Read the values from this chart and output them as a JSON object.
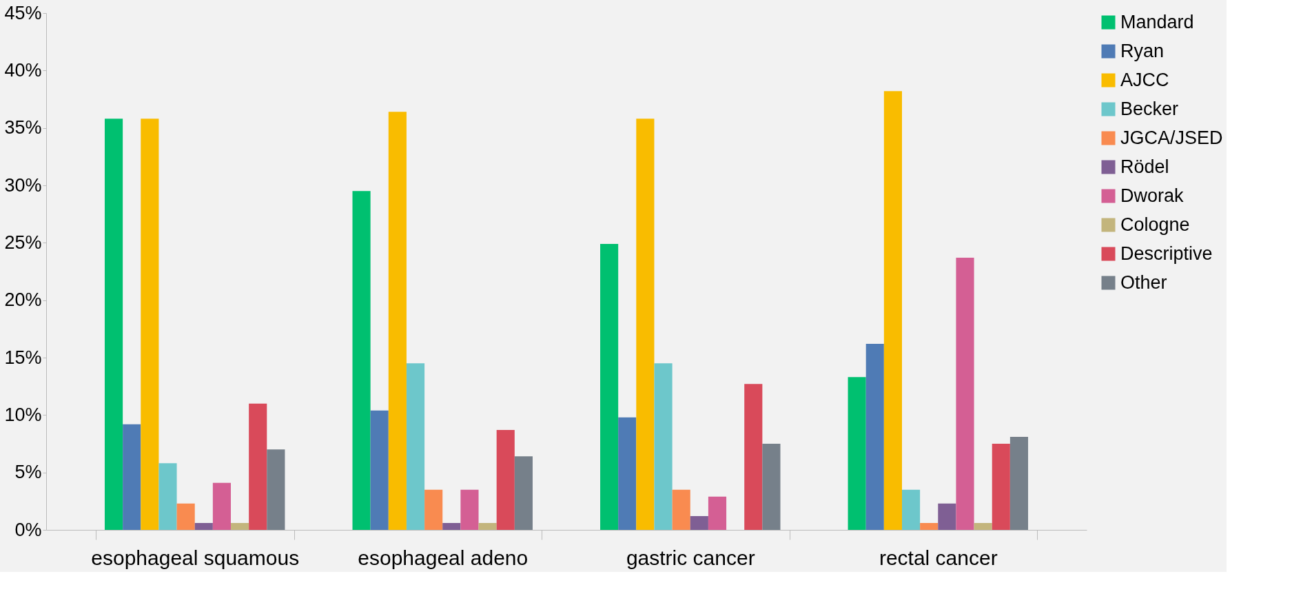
{
  "chart_data": {
    "type": "bar",
    "categories": [
      "esophageal squamous",
      "esophageal adeno",
      "gastric cancer",
      "rectal cancer"
    ],
    "series": [
      {
        "name": "Mandard",
        "color": "#00c070",
        "values": [
          35.8,
          29.5,
          24.9,
          13.3
        ]
      },
      {
        "name": "Ryan",
        "color": "#4f7bb5",
        "values": [
          9.2,
          10.4,
          9.8,
          16.2
        ]
      },
      {
        "name": "AJCC",
        "color": "#f9bc00",
        "values": [
          35.8,
          36.4,
          35.8,
          38.2
        ]
      },
      {
        "name": "Becker",
        "color": "#6dc7cb",
        "values": [
          5.8,
          14.5,
          14.5,
          3.5
        ]
      },
      {
        "name": "JGCA/JSED",
        "color": "#f98b50",
        "values": [
          2.3,
          3.5,
          3.5,
          0.6
        ]
      },
      {
        "name": "Rödel",
        "color": "#7f5f94",
        "values": [
          0.6,
          0.6,
          1.2,
          2.3
        ]
      },
      {
        "name": "Dworak",
        "color": "#d45f94",
        "values": [
          4.1,
          3.5,
          2.9,
          23.7
        ]
      },
      {
        "name": "Cologne",
        "color": "#c3b57d",
        "values": [
          0.6,
          0.6,
          0,
          0.6
        ]
      },
      {
        "name": "Descriptive",
        "color": "#d94a5a",
        "values": [
          11.0,
          8.7,
          12.7,
          7.5
        ]
      },
      {
        "name": "Other",
        "color": "#76808a",
        "values": [
          7.0,
          6.4,
          7.5,
          8.1
        ]
      }
    ],
    "ylim": [
      0,
      45
    ],
    "yticks": [
      {
        "value": 0,
        "label": "0%"
      },
      {
        "value": 5,
        "label": "5%"
      },
      {
        "value": 10,
        "label": "10%"
      },
      {
        "value": 15,
        "label": "15%"
      },
      {
        "value": 20,
        "label": "20%"
      },
      {
        "value": 25,
        "label": "25%"
      },
      {
        "value": 30,
        "label": "30%"
      },
      {
        "value": 35,
        "label": "35%"
      },
      {
        "value": 40,
        "label": "40%"
      },
      {
        "value": 45,
        "label": "45%"
      }
    ],
    "grid": false,
    "legend": "right"
  }
}
